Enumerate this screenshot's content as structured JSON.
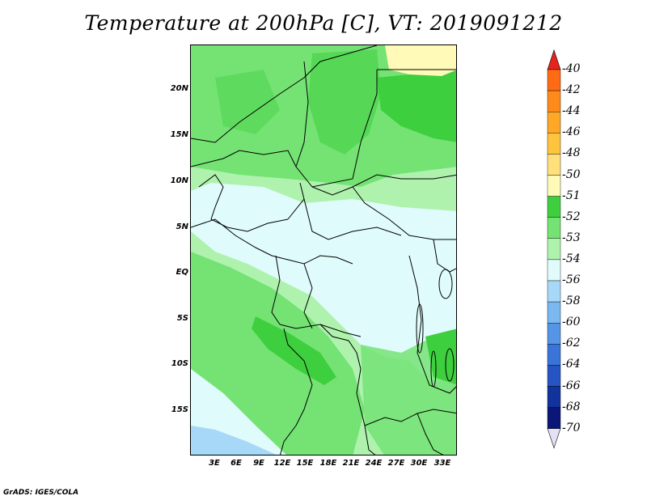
{
  "title": "Temperature at 200hPa [C], VT: 2019091212",
  "credit": "GrADS: IGES/COLA",
  "map": {
    "latitude_labels": [
      "20N",
      "15N",
      "10N",
      "5N",
      "EQ",
      "5S",
      "10S",
      "15S"
    ],
    "longitude_labels": [
      "3E",
      "6E",
      "9E",
      "12E",
      "15E",
      "18E",
      "21E",
      "24E",
      "27E",
      "30E",
      "33E"
    ]
  },
  "colorbar": {
    "levels": [
      {
        "label": "-40",
        "color": "#ff3a3a"
      },
      {
        "label": "-42",
        "color": "#ff6a14"
      },
      {
        "label": "-44",
        "color": "#ff8a1c"
      },
      {
        "label": "-46",
        "color": "#ffa726"
      },
      {
        "label": "-48",
        "color": "#ffc43d"
      },
      {
        "label": "-50",
        "color": "#ffe07a"
      },
      {
        "label": "-51",
        "color": "#fffab8"
      },
      {
        "label": "-52",
        "color": "#3ecf3e"
      },
      {
        "label": "-53",
        "color": "#74e374"
      },
      {
        "label": "-54",
        "color": "#aef2ae"
      },
      {
        "label": "-56",
        "color": "#e0fbfb"
      },
      {
        "label": "-58",
        "color": "#a8d8f8"
      },
      {
        "label": "-60",
        "color": "#7ab8ef"
      },
      {
        "label": "-62",
        "color": "#5595e6"
      },
      {
        "label": "-64",
        "color": "#3a74d8"
      },
      {
        "label": "-66",
        "color": "#2654c4"
      },
      {
        "label": "-68",
        "color": "#12329e"
      },
      {
        "label": "-70",
        "color": "#0a1678"
      }
    ],
    "top_arrow_color": "#e8231e",
    "bottom_arrow_color": "#e6e0f4"
  }
}
